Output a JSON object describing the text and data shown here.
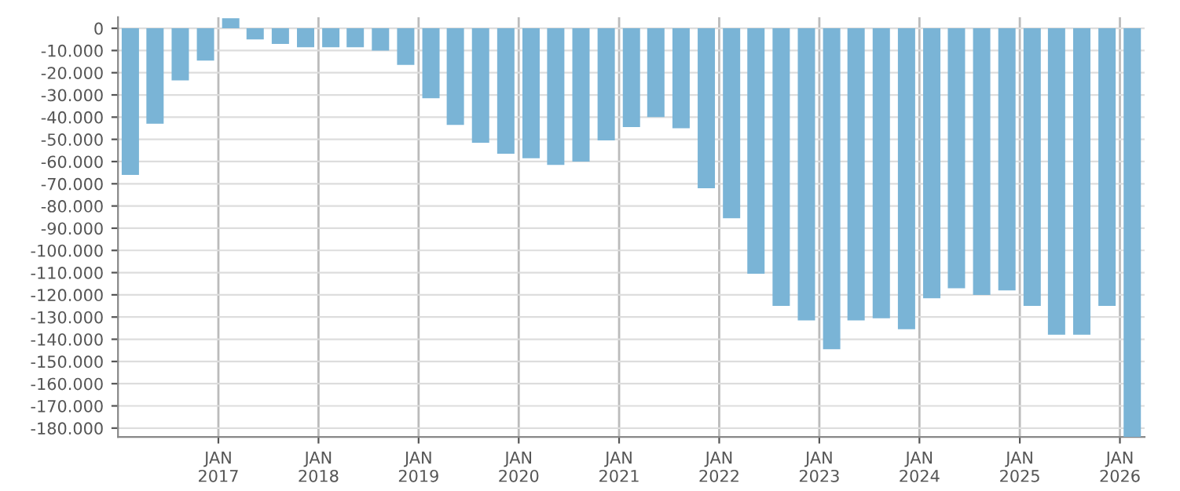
{
  "chart_data": {
    "type": "bar",
    "color": "#7ab4d6",
    "x": [
      "2016-02-15",
      "2016-05-15",
      "2016-08-15",
      "2016-11-15",
      "2017-02-15",
      "2017-05-15",
      "2017-08-15",
      "2017-11-15",
      "2018-02-15",
      "2018-05-15",
      "2018-08-15",
      "2018-11-15",
      "2019-02-15",
      "2019-05-15",
      "2019-08-15",
      "2019-11-15",
      "2020-02-15",
      "2020-05-15",
      "2020-08-15",
      "2020-11-15",
      "2021-02-15",
      "2021-05-15",
      "2021-08-15",
      "2021-11-15",
      "2022-02-15",
      "2022-05-15",
      "2022-08-15",
      "2022-11-15",
      "2023-02-15",
      "2023-05-15",
      "2023-08-15",
      "2023-11-15",
      "2024-02-15",
      "2024-05-15",
      "2024-08-15",
      "2024-11-15",
      "2025-02-15",
      "2025-05-15",
      "2025-08-15",
      "2025-11-15",
      "2026-02-15"
    ],
    "values": [
      -66000,
      -43000,
      -23500,
      -14500,
      4500,
      -5000,
      -7000,
      -8500,
      -8500,
      -8500,
      -10000,
      -16500,
      -31500,
      -43500,
      -51500,
      -56500,
      -58500,
      -61500,
      -60000,
      -50500,
      -44500,
      -40000,
      -45000,
      -72000,
      -85500,
      -110500,
      -125000,
      -131500,
      -144500,
      -131500,
      -130500,
      -135500,
      -121500,
      -117000,
      -120000,
      -118000,
      -125000,
      -138000,
      -138000,
      -125000,
      -184000
    ],
    "xlim": [
      "2016-01-01",
      "2026-04-01"
    ],
    "xticks": [
      {
        "value": "2017-01-01",
        "label": "JAN\n2017"
      },
      {
        "value": "2018-01-01",
        "label": "JAN\n2018"
      },
      {
        "value": "2019-01-01",
        "label": "JAN\n2019"
      },
      {
        "value": "2020-01-01",
        "label": "JAN\n2020"
      },
      {
        "value": "2021-01-01",
        "label": "JAN\n2021"
      },
      {
        "value": "2022-01-01",
        "label": "JAN\n2022"
      },
      {
        "value": "2023-01-01",
        "label": "JAN\n2023"
      },
      {
        "value": "2024-01-01",
        "label": "JAN\n2024"
      },
      {
        "value": "2025-01-01",
        "label": "JAN\n2025"
      },
      {
        "value": "2026-01-01",
        "label": "JAN\n2026"
      }
    ],
    "ylim": [
      -184000,
      5000
    ],
    "yticks": [
      0,
      {
        "value": -10000,
        "label": "-10.000"
      },
      {
        "value": -20000,
        "label": "-20.000"
      },
      {
        "value": -30000,
        "label": "-30.000"
      },
      {
        "value": -40000,
        "label": "-40.000"
      },
      {
        "value": -50000,
        "label": "-50.000"
      },
      {
        "value": -60000,
        "label": "-60.000"
      },
      {
        "value": -70000,
        "label": "-70.000"
      },
      {
        "value": -80000,
        "label": "-80.000"
      },
      {
        "value": -90000,
        "label": "-90.000"
      },
      {
        "value": -100000,
        "label": "-100.000"
      },
      {
        "value": -110000,
        "label": "-110.000"
      },
      {
        "value": -120000,
        "label": "-120.000"
      },
      {
        "value": -130000,
        "label": "-130.000"
      },
      {
        "value": -140000,
        "label": "-140.000"
      },
      {
        "value": -150000,
        "label": "-150.000"
      },
      {
        "value": -160000,
        "label": "-160.000"
      },
      {
        "value": -170000,
        "label": "-170.000"
      },
      {
        "value": -180000,
        "label": "-180.000"
      }
    ],
    "grid": true
  }
}
